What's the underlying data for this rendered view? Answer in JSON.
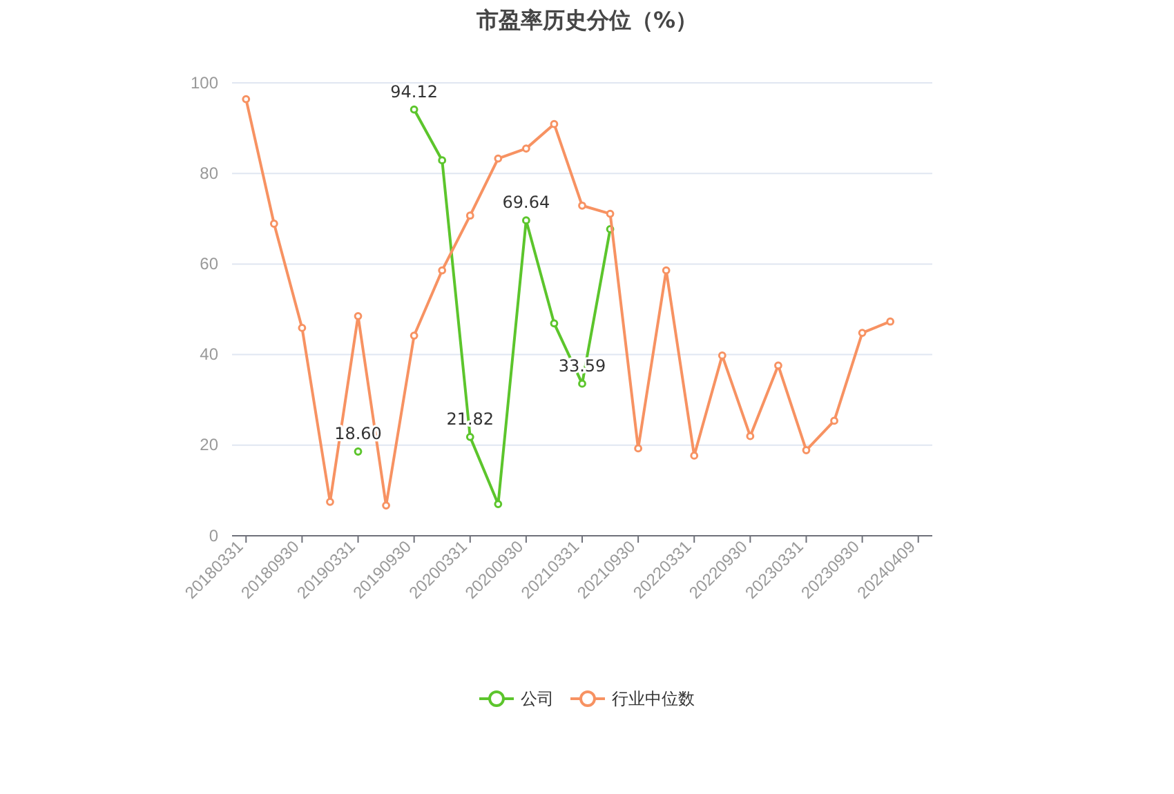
{
  "chart_data": {
    "type": "line",
    "title": "市盈率历史分位（%）",
    "categories": [
      "20180331",
      null,
      "20180930",
      null,
      "20190331",
      null,
      "20190930",
      null,
      "20200331",
      null,
      "20200930",
      null,
      "20210331",
      null,
      "20210930",
      null,
      "20220331",
      null,
      "20220930",
      null,
      "20230331",
      null,
      "20230930",
      null,
      "20240409"
    ],
    "series": [
      {
        "name": "公司",
        "color": "#5cc52c",
        "values": [
          null,
          null,
          null,
          null,
          18.6,
          null,
          94.12,
          82.9,
          21.82,
          7.0,
          69.64,
          46.9,
          33.59,
          67.7,
          null,
          null,
          null,
          null,
          null,
          null,
          null,
          null,
          null,
          null,
          null
        ],
        "value_labels": [
          null,
          null,
          null,
          null,
          "18.60",
          null,
          "94.12",
          null,
          "21.82",
          null,
          "69.64",
          null,
          "33.59",
          null,
          null,
          null,
          null,
          null,
          null,
          null,
          null,
          null,
          null,
          null,
          null
        ]
      },
      {
        "name": "行业中位数",
        "color": "#f79262",
        "values": [
          96.4,
          68.9,
          45.9,
          7.5,
          48.5,
          6.7,
          44.2,
          58.6,
          70.7,
          83.3,
          85.5,
          90.9,
          72.9,
          71.1,
          19.3,
          58.6,
          17.7,
          39.8,
          22.0,
          37.6,
          18.9,
          25.4,
          44.8,
          47.3,
          null
        ]
      }
    ],
    "ylim": [
      0,
      100
    ],
    "yticks": [
      0,
      20,
      40,
      60,
      80,
      100
    ],
    "grid": "y",
    "legend": "bottom",
    "marker": "circle",
    "line_style": "solid"
  }
}
